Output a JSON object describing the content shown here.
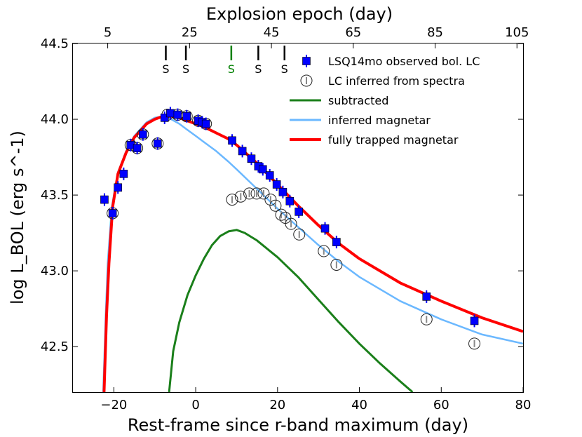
{
  "chart_data": {
    "type": "line",
    "xlabel": "Rest-frame since r-band maximum (day)",
    "ylabel": "log L_BOL (erg s^-1)",
    "top_xlabel": "Explosion epoch (day)",
    "xlim": [
      -30,
      80
    ],
    "ylim": [
      42.2,
      44.5
    ],
    "x_ticks": [
      -20,
      0,
      20,
      40,
      60,
      80
    ],
    "x_tick_labels": [
      "−20",
      "0",
      "20",
      "40",
      "60",
      "80"
    ],
    "y_ticks": [
      42.5,
      43.0,
      43.5,
      44.0,
      44.5
    ],
    "y_tick_labels": [
      "42.5",
      "43.0",
      "43.5",
      "44.0",
      "44.5"
    ],
    "top_ticks": [
      5,
      25,
      45,
      65,
      85,
      105
    ],
    "top_tick_labels": [
      "5",
      "25",
      "45",
      "65",
      "85",
      "105"
    ],
    "top_axis_offset": 1.5,
    "grid": false,
    "legend_position": "top-right",
    "spectra_epochs": [
      {
        "x": -7.3,
        "label": "S",
        "color": "#000000"
      },
      {
        "x": -2.4,
        "label": "S",
        "color": "#000000"
      },
      {
        "x": 8.7,
        "label": "S",
        "color": "#008000"
      },
      {
        "x": 15.3,
        "label": "S",
        "color": "#000000"
      },
      {
        "x": 21.7,
        "label": "S",
        "color": "#000000"
      }
    ],
    "series": [
      {
        "name": "LSQ14mo observed bol. LC",
        "kind": "points",
        "marker": "square",
        "color": "#0000ff",
        "points": [
          [
            -22.3,
            43.47
          ],
          [
            -20.3,
            43.38
          ],
          [
            -19.0,
            43.55
          ],
          [
            -17.6,
            43.64
          ],
          [
            -15.9,
            43.83
          ],
          [
            -14.3,
            43.81
          ],
          [
            -12.9,
            43.9
          ],
          [
            -9.3,
            43.84
          ],
          [
            -7.6,
            44.01
          ],
          [
            -6.2,
            44.04
          ],
          [
            -4.4,
            44.03
          ],
          [
            -2.2,
            44.02
          ],
          [
            0.6,
            43.99
          ],
          [
            1.6,
            43.98
          ],
          [
            2.5,
            43.97
          ],
          [
            8.9,
            43.86
          ],
          [
            11.4,
            43.79
          ],
          [
            13.6,
            43.74
          ],
          [
            15.3,
            43.69
          ],
          [
            16.4,
            43.67
          ],
          [
            18.1,
            43.63
          ],
          [
            19.8,
            43.57
          ],
          [
            21.3,
            43.52
          ],
          [
            23.0,
            43.46
          ],
          [
            25.2,
            43.39
          ],
          [
            31.6,
            43.28
          ],
          [
            34.4,
            43.19
          ],
          [
            56.4,
            42.83
          ],
          [
            68.1,
            42.67
          ]
        ]
      },
      {
        "name": "LC inferred from spectra",
        "kind": "points",
        "marker": "open-circle",
        "color": "#000000",
        "points": [
          [
            -20.3,
            43.38
          ],
          [
            -15.9,
            43.83
          ],
          [
            -14.3,
            43.81
          ],
          [
            -12.9,
            43.9
          ],
          [
            -9.3,
            43.84
          ],
          [
            -6.9,
            44.03
          ],
          [
            -4.4,
            44.03
          ],
          [
            -2.2,
            44.02
          ],
          [
            0.6,
            43.99
          ],
          [
            2.5,
            43.97
          ],
          [
            8.9,
            43.47
          ],
          [
            11.0,
            43.49
          ],
          [
            13.1,
            43.51
          ],
          [
            14.9,
            43.51
          ],
          [
            16.6,
            43.51
          ],
          [
            18.3,
            43.47
          ],
          [
            19.5,
            43.43
          ],
          [
            20.9,
            43.37
          ],
          [
            21.9,
            43.35
          ],
          [
            23.3,
            43.31
          ],
          [
            25.3,
            43.24
          ],
          [
            31.3,
            43.13
          ],
          [
            34.4,
            43.04
          ],
          [
            56.4,
            42.68
          ],
          [
            68.1,
            42.52
          ]
        ]
      },
      {
        "name": "subtracted",
        "kind": "line",
        "color": "#1a7f1a",
        "points": [
          [
            -6.5,
            42.2
          ],
          [
            -5.5,
            42.47
          ],
          [
            -4,
            42.66
          ],
          [
            -2,
            42.84
          ],
          [
            0,
            42.97
          ],
          [
            2,
            43.08
          ],
          [
            4,
            43.17
          ],
          [
            6,
            43.23
          ],
          [
            8,
            43.26
          ],
          [
            10,
            43.27
          ],
          [
            12,
            43.25
          ],
          [
            15,
            43.2
          ],
          [
            20,
            43.09
          ],
          [
            25,
            42.96
          ],
          [
            30,
            42.81
          ],
          [
            35,
            42.66
          ],
          [
            40,
            42.52
          ],
          [
            45,
            42.39
          ],
          [
            50,
            42.27
          ],
          [
            53,
            42.2
          ]
        ]
      },
      {
        "name": "inferred magnetar",
        "kind": "line",
        "color": "#6bb8ff",
        "points": [
          [
            -22.6,
            42.2
          ],
          [
            -22.0,
            42.7
          ],
          [
            -21.5,
            43.05
          ],
          [
            -20.5,
            43.42
          ],
          [
            -19,
            43.65
          ],
          [
            -17,
            43.79
          ],
          [
            -15,
            43.89
          ],
          [
            -12,
            43.98
          ],
          [
            -10,
            44.01
          ],
          [
            -8,
            44.02
          ],
          [
            -6,
            44.0
          ],
          [
            -4,
            43.97
          ],
          [
            -2,
            43.93
          ],
          [
            0,
            43.89
          ],
          [
            2,
            43.85
          ],
          [
            5,
            43.79
          ],
          [
            8,
            43.72
          ],
          [
            10,
            43.67
          ],
          [
            15,
            43.54
          ],
          [
            20,
            43.41
          ],
          [
            25,
            43.29
          ],
          [
            30,
            43.17
          ],
          [
            35,
            43.06
          ],
          [
            40,
            42.96
          ],
          [
            50,
            42.8
          ],
          [
            60,
            42.68
          ],
          [
            70,
            42.58
          ],
          [
            80,
            42.52
          ]
        ]
      },
      {
        "name": "fully trapped magnetar",
        "kind": "line",
        "color": "#ff0000",
        "points": [
          [
            -22.4,
            42.2
          ],
          [
            -21.8,
            42.7
          ],
          [
            -21.2,
            43.05
          ],
          [
            -20.3,
            43.42
          ],
          [
            -19,
            43.64
          ],
          [
            -17,
            43.78
          ],
          [
            -15,
            43.88
          ],
          [
            -12,
            43.97
          ],
          [
            -10,
            44.0
          ],
          [
            -8,
            44.02
          ],
          [
            -6,
            44.02
          ],
          [
            -4,
            44.01
          ],
          [
            -2,
            43.99
          ],
          [
            0,
            43.97
          ],
          [
            2,
            43.95
          ],
          [
            5,
            43.91
          ],
          [
            8,
            43.87
          ],
          [
            10,
            43.83
          ],
          [
            15,
            43.71
          ],
          [
            20,
            43.57
          ],
          [
            25,
            43.43
          ],
          [
            30,
            43.3
          ],
          [
            35,
            43.18
          ],
          [
            40,
            43.08
          ],
          [
            50,
            42.92
          ],
          [
            60,
            42.8
          ],
          [
            70,
            42.69
          ],
          [
            80,
            42.6
          ]
        ]
      }
    ]
  }
}
